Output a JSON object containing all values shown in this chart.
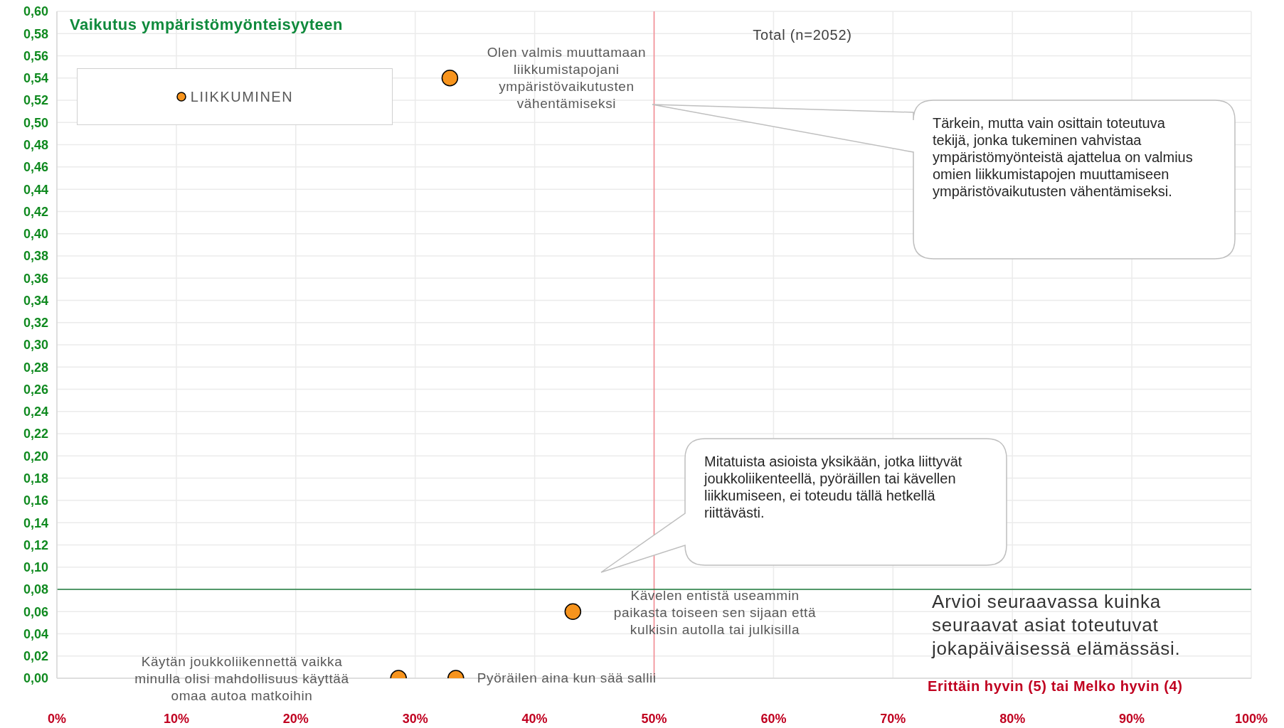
{
  "chart_data": {
    "type": "scatter",
    "ylabel": "Vaikutus ympäristömyönteisyyteen",
    "xlabel": "Erittäin hyvin (5) tai Melko hyvin (4)",
    "subtitle": "Total (n=2052)",
    "series": [
      {
        "name": "LIIKKUMINEN",
        "color": "#f7941d",
        "x": [
          32.9,
          43.2,
          28.6,
          33.4
        ],
        "values": [
          0.54,
          0.06,
          0.0,
          0.0
        ]
      }
    ],
    "annotations": [
      {
        "text": "Olen valmis muuttamaan liikkumistapojani ympäristövaikutusten vähentämiseksi",
        "x": 32.9,
        "y": 0.54
      },
      "Kävelen entistä useammin paikasta toiseen sen sijaan että kulkisin autolla tai julkisilla",
      "Käytän joukkoliikennettä vaikka minulla olisi mahdollisuus käyttää omaa autoa matkoihin",
      {
        "text": "Pyöräilen aina kun sää sallii",
        "x": 33.4,
        "y": 0.0
      },
      "Tärkein, mutta vain osittain toteutuva tekijä, jonka tukeminen vahvistaa ympäristömyönteistä ajattelua on valmius omien liikkumistapojen muuttamiseen ympäristövaikutusten vähentämiseksi.",
      "Mitatuista asioista yksikään, jotka liittyvät joukkoliikenteellä, pyöräillen tai kävellen liikkumiseen, ei toteudu tällä hetkellä riittävästi.",
      "Arvioi seuraavassa kuinka seuraavat asiat toteutuvat jokapäiväisessä elämässäsi."
    ],
    "xlim": [
      0,
      100
    ],
    "xticks": [
      {
        "value": 0,
        "label": "0%"
      },
      {
        "value": 10,
        "label": "10%"
      },
      {
        "value": 20,
        "label": "20%"
      },
      {
        "value": 30,
        "label": "30%"
      },
      {
        "value": 40,
        "label": "40%"
      },
      {
        "value": 50,
        "label": "50%"
      },
      {
        "value": 60,
        "label": "60%"
      },
      {
        "value": 70,
        "label": "70%"
      },
      {
        "value": 80,
        "label": "80%"
      },
      {
        "value": 90,
        "label": "90%"
      },
      {
        "value": 100,
        "label": "100%"
      }
    ],
    "ylim": [
      0,
      0.6
    ],
    "yticks": [
      {
        "value": 0,
        "label": "0,00"
      },
      {
        "value": 0.02,
        "label": "0,02"
      },
      {
        "value": 0.04,
        "label": "0,04"
      },
      {
        "value": 0.06,
        "label": "0,06"
      },
      {
        "value": 0.08,
        "label": "0,08"
      },
      {
        "value": 0.1,
        "label": "0,10"
      },
      {
        "value": 0.12,
        "label": "0,12"
      },
      {
        "value": 0.14,
        "label": "0,14"
      },
      {
        "value": 0.16,
        "label": "0,16"
      },
      {
        "value": 0.18,
        "label": "0,18"
      },
      {
        "value": 0.2,
        "label": "0,20"
      },
      {
        "value": 0.22,
        "label": "0,22"
      },
      {
        "value": 0.24,
        "label": "0,24"
      },
      {
        "value": 0.26,
        "label": "0,26"
      },
      {
        "value": 0.28,
        "label": "0,28"
      },
      {
        "value": 0.3,
        "label": "0,30"
      },
      {
        "value": 0.32,
        "label": "0,32"
      },
      {
        "value": 0.34,
        "label": "0,34"
      },
      {
        "value": 0.36,
        "label": "0,36"
      },
      {
        "value": 0.38,
        "label": "0,38"
      },
      {
        "value": 0.4,
        "label": "0,40"
      },
      {
        "value": 0.42,
        "label": "0,42"
      },
      {
        "value": 0.44,
        "label": "0,44"
      },
      {
        "value": 0.46,
        "label": "0,46"
      },
      {
        "value": 0.48,
        "label": "0,48"
      },
      {
        "value": 0.5,
        "label": "0,50"
      },
      {
        "value": 0.52,
        "label": "0,52"
      },
      {
        "value": 0.54,
        "label": "0,54"
      },
      {
        "value": 0.56,
        "label": "0,56"
      },
      {
        "value": 0.58,
        "label": "0,58"
      },
      {
        "value": 0.6,
        "label": "0,60"
      }
    ],
    "ref_lines": [
      {
        "axis": "x",
        "value": 50,
        "color": "#f4878f"
      },
      {
        "axis": "y",
        "value": 0.08,
        "color": "#1e7b3c"
      }
    ],
    "grid": true,
    "legend": "top left",
    "marker": "circle"
  }
}
